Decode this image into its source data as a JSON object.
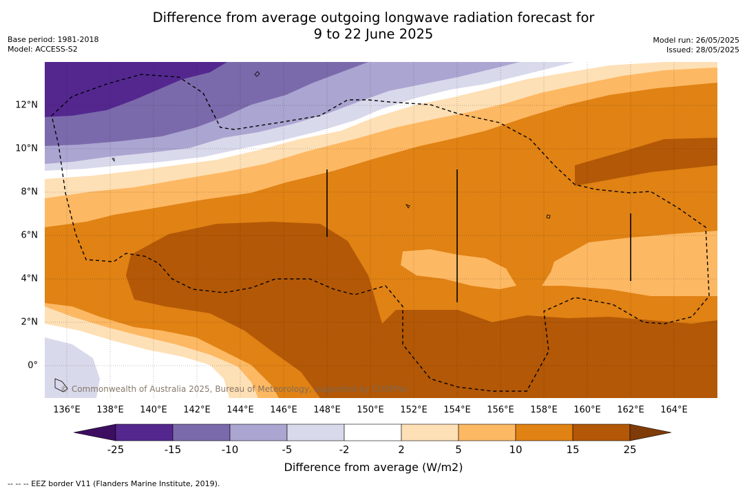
{
  "header": {
    "title_line1": "Difference from average outgoing longwave radiation forecast for",
    "title_line2": "9 to 22 June 2025",
    "base_period": "Base period: 1981-2018",
    "model": "Model: ACCESS-S2",
    "model_run": "Model run: 26/05/2025",
    "issued": "Issued: 28/05/2025"
  },
  "map": {
    "lon_ticks": [
      "136°E",
      "138°E",
      "140°E",
      "142°E",
      "144°E",
      "146°E",
      "148°E",
      "150°E",
      "152°E",
      "154°E",
      "156°E",
      "158°E",
      "160°E",
      "162°E",
      "164°E"
    ],
    "lat_ticks": [
      "12°N",
      "10°N",
      "8°N",
      "6°N",
      "4°N",
      "2°N",
      "0°"
    ],
    "lon_range": [
      135,
      166
    ],
    "lat_range": [
      -1.5,
      14
    ],
    "copyright": "© Commonwealth of Australia 2025, Bureau of Meteorology, supported by COSPPac"
  },
  "legend": {
    "levels": [
      "-25",
      "-15",
      "-10",
      "-5",
      "-2",
      "2",
      "5",
      "10",
      "15",
      "25"
    ],
    "colors": [
      "#3d0d62",
      "#54278f",
      "#7b6aab",
      "#aba5d1",
      "#d9d9ec",
      "#ffffff",
      "#fee0b6",
      "#fdb863",
      "#e08214",
      "#b35806",
      "#7f3b08"
    ],
    "title": "Difference from average (W/m2)"
  },
  "footer": {
    "eez_note": "--  --  -- EEZ border V11 (Flanders Marine Institute, 2019)."
  }
}
